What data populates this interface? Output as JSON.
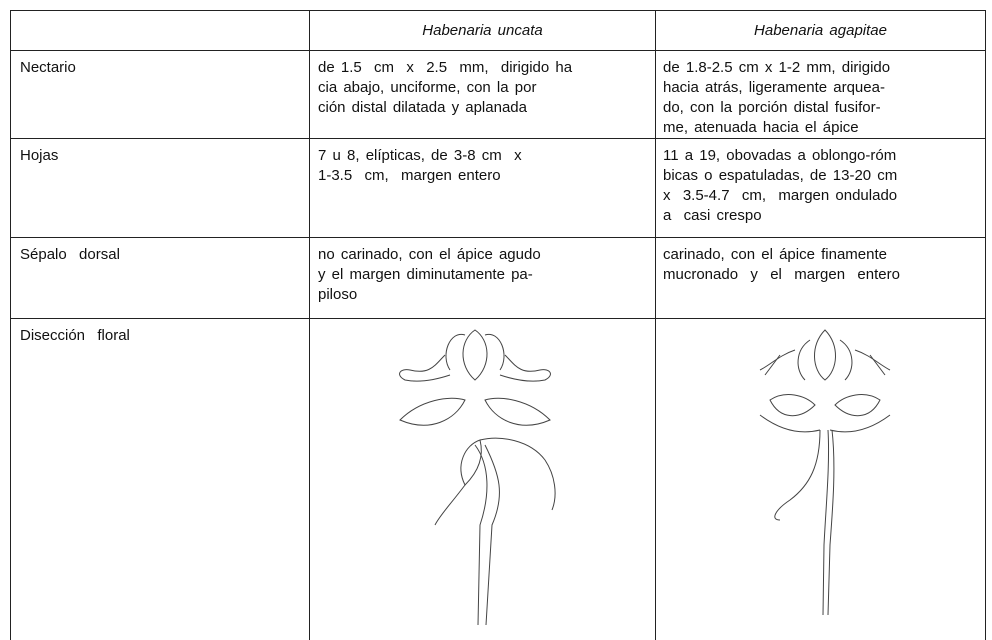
{
  "table": {
    "header": {
      "uncata": "Habenaria  uncata",
      "agapitae": "Habenaria  agapitae"
    },
    "rows": [
      {
        "label": "Nectario",
        "uncata": [
          "de 1.5  cm  x  2.5  mm,  dirigido ha",
          "cia abajo, unciforme, con la por",
          "ción distal dilatada y aplanada"
        ],
        "agapitae": [
          "de 1.8-2.5 cm x 1-2 mm, dirigido",
          "hacia atrás, ligeramente arquea-",
          "do, con la porción distal fusifor-",
          "me, atenuada hacia el ápice"
        ]
      },
      {
        "label": "Hojas",
        "uncata": [
          "7 u 8, elípticas, de 3-8 cm  x",
          "1-3.5  cm,  margen entero"
        ],
        "agapitae": [
          "11 a 19, obovadas a oblongo-róm",
          "bicas o espatuladas, de 13-20 cm",
          "x  3.5-4.7  cm,  margen ondulado",
          "a  casi crespo"
        ]
      },
      {
        "label": "Sépalo  dorsal",
        "uncata": [
          "no carinado, con el ápice agudo",
          "y el margen diminutamente pa-",
          "piloso"
        ],
        "agapitae": [
          "carinado, con el ápice finamente",
          "mucronado  y  el  margen  entero"
        ]
      },
      {
        "label": "Disección  floral"
      }
    ]
  }
}
